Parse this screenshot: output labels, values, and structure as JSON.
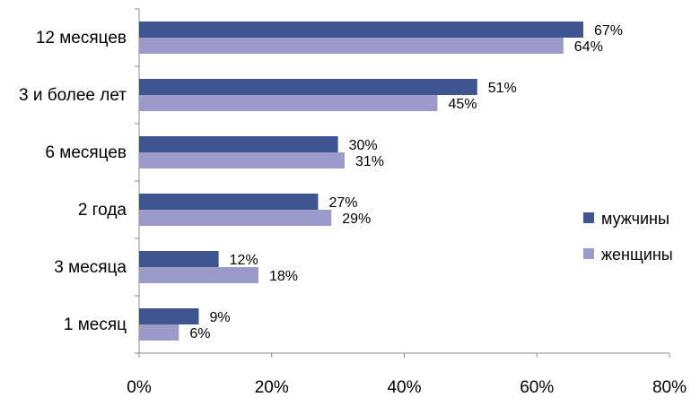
{
  "chart_data": {
    "type": "bar",
    "orientation": "horizontal",
    "categories": [
      "12 месяцев",
      "3 и более лет",
      "6 месяцев",
      "2 года",
      "3 месяца",
      "1 месяц"
    ],
    "series": [
      {
        "name": "мужчины",
        "color": "#3f5591",
        "values": [
          67,
          51,
          30,
          27,
          12,
          9
        ],
        "labels": [
          "67%",
          "51%",
          "30%",
          "27%",
          "12%",
          "9%"
        ]
      },
      {
        "name": "женщины",
        "color": "#9c99cb",
        "values": [
          64,
          45,
          31,
          29,
          18,
          6
        ],
        "labels": [
          "64%",
          "45%",
          "31%",
          "29%",
          "18%",
          "6%"
        ]
      }
    ],
    "xlim": [
      0,
      80
    ],
    "xticks": [
      0,
      20,
      40,
      60,
      80
    ],
    "xtick_labels": [
      "0%",
      "20%",
      "40%",
      "60%",
      "80%"
    ],
    "grid": false,
    "legend": "right",
    "title": "",
    "xlabel": "",
    "ylabel": ""
  }
}
